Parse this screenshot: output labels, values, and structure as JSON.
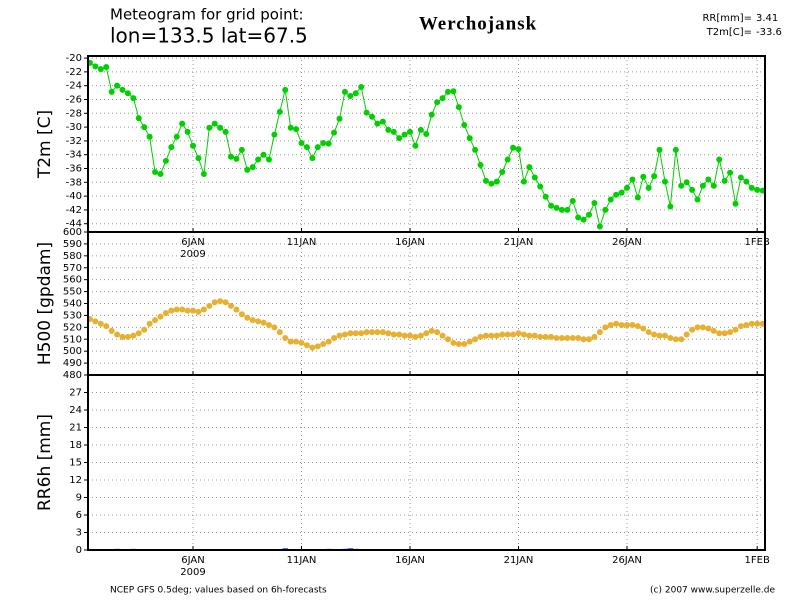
{
  "header": {
    "line1": "Meteogram for grid point:",
    "line2": "lon=133.5 lat=67.5",
    "station": "Werchojansk",
    "stats": [
      {
        "label": "RR[mm]=",
        "value": 3.41
      },
      {
        "label": "T2m[C]=",
        "value": -33.6
      }
    ]
  },
  "footer": {
    "left": "NCEP GFS 0.5deg; values based on 6h-forecasts",
    "right": "(c) 2007 www.superzelle.de"
  },
  "chart_data": [
    {
      "type": "line",
      "ylabel": "T2m [C]",
      "color": "#00d000",
      "grid": true,
      "year_label": "2009",
      "x": [
        1.25,
        1.5,
        1.75,
        2,
        2.25,
        2.5,
        2.75,
        3,
        3.25,
        3.5,
        3.75,
        4,
        4.25,
        4.5,
        4.75,
        5,
        5.25,
        5.5,
        5.75,
        6,
        6.25,
        6.5,
        6.75,
        7,
        7.25,
        7.5,
        7.75,
        8,
        8.25,
        8.5,
        8.75,
        9,
        9.25,
        9.5,
        9.75,
        10,
        10.25,
        10.5,
        10.75,
        11,
        11.25,
        11.5,
        11.75,
        12,
        12.25,
        12.5,
        12.75,
        13,
        13.25,
        13.5,
        13.75,
        14,
        14.25,
        14.5,
        14.75,
        15,
        15.25,
        15.5,
        15.75,
        16,
        16.25,
        16.5,
        16.75,
        17,
        17.25,
        17.5,
        17.75,
        18,
        18.25,
        18.5,
        18.75,
        19,
        19.25,
        19.5,
        19.75,
        20,
        20.25,
        20.5,
        20.75,
        21,
        21.25,
        21.5,
        21.75,
        22,
        22.25,
        22.5,
        22.75,
        23,
        23.25,
        23.5,
        23.75,
        24,
        24.25,
        24.5,
        24.75,
        25,
        25.25,
        25.5,
        25.75,
        26,
        26.25,
        26.5,
        26.75,
        27,
        27.25,
        27.5,
        27.75,
        28,
        28.25,
        28.5,
        28.75,
        29,
        29.25,
        29.5,
        29.75,
        30,
        30.25,
        30.5,
        30.75,
        31,
        31.25,
        31.5,
        31.75,
        32,
        32.25
      ],
      "values": [
        -20.7,
        -21.2,
        -21.6,
        -21.3,
        -24.9,
        -24.0,
        -24.6,
        -25.1,
        -25.8,
        -28.7,
        -30.0,
        -31.4,
        -36.5,
        -36.8,
        -34.9,
        -32.9,
        -31.4,
        -29.5,
        -30.7,
        -32.7,
        -34.5,
        -36.8,
        -30.1,
        -29.5,
        -30.1,
        -30.7,
        -34.3,
        -34.6,
        -33.3,
        -36.2,
        -35.8,
        -34.7,
        -34.0,
        -34.7,
        -31.1,
        -27.8,
        -24.6,
        -30.1,
        -30.3,
        -32.3,
        -32.9,
        -34.5,
        -32.9,
        -32.3,
        -32.4,
        -30.8,
        -28.8,
        -24.9,
        -25.5,
        -25.1,
        -24.2,
        -27.9,
        -28.5,
        -29.5,
        -29.2,
        -30.4,
        -30.7,
        -31.6,
        -31.1,
        -30.7,
        -32.7,
        -30.4,
        -31.0,
        -28.2,
        -26.4,
        -25.8,
        -24.9,
        -24.8,
        -27.1,
        -29.7,
        -31.6,
        -33.3,
        -35.5,
        -37.8,
        -38.2,
        -37.9,
        -36.5,
        -34.7,
        -33.0,
        -33.2,
        -37.9,
        -35.8,
        -37.3,
        -38.6,
        -40.1,
        -41.4,
        -41.7,
        -42.0,
        -42.0,
        -40.7,
        -43.1,
        -43.4,
        -42.7,
        -41.0,
        -44.4,
        -42.0,
        -40.5,
        -39.8,
        -39.5,
        -38.8,
        -37.6,
        -40.2,
        -37.2,
        -38.8,
        -37.1,
        -33.3,
        -37.9,
        -41.5,
        -33.3,
        -38.5,
        -38.0,
        -39.1,
        -40.5,
        -38.5,
        -37.6,
        -38.5,
        -34.7,
        -37.8,
        -36.6,
        -41.1,
        -37.3,
        -37.9,
        -38.8,
        -39.1,
        -39.2
      ],
      "xlim": [
        1.16,
        32.36
      ],
      "ylim": [
        -45.2,
        -19.7
      ],
      "xticks": [
        {
          "value": 6,
          "label": "6JAN"
        },
        {
          "value": 11,
          "label": "11JAN"
        },
        {
          "value": 16,
          "label": "16JAN"
        },
        {
          "value": 21,
          "label": "21JAN"
        },
        {
          "value": 26,
          "label": "26JAN"
        },
        {
          "value": 32,
          "label": "1FEB"
        }
      ],
      "yticks": [
        -20,
        -22,
        -24,
        -26,
        -28,
        -30,
        -32,
        -34,
        -36,
        -38,
        -40,
        -42,
        -44
      ]
    },
    {
      "type": "scatter",
      "ylabel": "H500 [gpdam]",
      "color": "#e8b030",
      "grid": true,
      "x": [
        1.25,
        1.5,
        1.75,
        2,
        2.25,
        2.5,
        2.75,
        3,
        3.25,
        3.5,
        3.75,
        4,
        4.25,
        4.5,
        4.75,
        5,
        5.25,
        5.5,
        5.75,
        6,
        6.25,
        6.5,
        6.75,
        7,
        7.25,
        7.5,
        7.75,
        8,
        8.25,
        8.5,
        8.75,
        9,
        9.25,
        9.5,
        9.75,
        10,
        10.25,
        10.5,
        10.75,
        11,
        11.25,
        11.5,
        11.75,
        12,
        12.25,
        12.5,
        12.75,
        13,
        13.25,
        13.5,
        13.75,
        14,
        14.25,
        14.5,
        14.75,
        15,
        15.25,
        15.5,
        15.75,
        16,
        16.25,
        16.5,
        16.75,
        17,
        17.25,
        17.5,
        17.75,
        18,
        18.25,
        18.5,
        18.75,
        19,
        19.25,
        19.5,
        19.75,
        20,
        20.25,
        20.5,
        20.75,
        21,
        21.25,
        21.5,
        21.75,
        22,
        22.25,
        22.5,
        22.75,
        23,
        23.25,
        23.5,
        23.75,
        24,
        24.25,
        24.5,
        24.75,
        25,
        25.25,
        25.5,
        25.75,
        26,
        26.25,
        26.5,
        26.75,
        27,
        27.25,
        27.5,
        27.75,
        28,
        28.25,
        28.5,
        28.75,
        29,
        29.25,
        29.5,
        29.75,
        30,
        30.25,
        30.5,
        30.75,
        31,
        31.25,
        31.5,
        31.75,
        32,
        32.25
      ],
      "values": [
        527,
        525,
        523,
        521,
        517,
        514,
        512,
        512,
        513,
        515,
        518,
        523,
        526,
        529,
        532,
        534,
        535,
        535,
        534,
        534,
        533,
        535,
        538,
        541,
        542,
        541,
        538,
        535,
        531,
        528,
        526,
        525,
        524,
        522,
        520,
        516,
        511,
        508,
        508,
        507,
        505,
        503,
        504,
        506,
        508,
        511,
        513,
        514,
        515,
        515,
        515,
        516,
        516,
        516,
        516,
        515,
        514,
        514,
        513,
        513,
        512,
        513,
        515,
        517,
        516,
        513,
        510,
        507,
        506,
        506,
        508,
        510,
        512,
        513,
        513,
        513,
        514,
        514,
        514,
        515,
        514,
        513,
        513,
        512,
        512,
        512,
        511,
        511,
        511,
        511,
        511,
        510,
        510,
        512,
        516,
        520,
        522,
        523,
        522,
        522,
        522,
        521,
        519,
        516,
        514,
        513,
        513,
        511,
        510,
        510,
        514,
        518,
        520,
        520,
        519,
        517,
        515,
        515,
        516,
        518,
        521,
        522,
        523,
        523,
        523
      ],
      "xlim": [
        1.16,
        32.36
      ],
      "ylim": [
        480,
        600
      ],
      "xticks": [
        6,
        11,
        16,
        21,
        26,
        32
      ],
      "yticks": [
        480,
        490,
        500,
        510,
        520,
        530,
        540,
        550,
        560,
        570,
        580,
        590,
        600
      ]
    },
    {
      "type": "bar",
      "ylabel": "RR6h [mm]",
      "color": "#2040ff",
      "grid": true,
      "year_label": "2009",
      "x": [
        1.25,
        1.5,
        1.75,
        2,
        2.25,
        2.5,
        2.75,
        3,
        3.25,
        3.5,
        3.75,
        4,
        4.25,
        4.5,
        4.75,
        5,
        5.25,
        5.5,
        5.75,
        6,
        6.25,
        6.5,
        6.75,
        7,
        7.25,
        7.5,
        7.75,
        8,
        8.25,
        8.5,
        8.75,
        9,
        9.25,
        9.5,
        9.75,
        10,
        10.25,
        10.5,
        10.75,
        11,
        11.25,
        11.5,
        11.75,
        12,
        12.25,
        12.5,
        12.75,
        13,
        13.25,
        13.5,
        13.75,
        14,
        14.25,
        14.5,
        14.75,
        15,
        15.25,
        15.5,
        15.75,
        16,
        16.25,
        16.5,
        16.75,
        17,
        17.25,
        17.5,
        17.75,
        18,
        18.25,
        18.5,
        18.75,
        19,
        19.25,
        19.5,
        19.75,
        20,
        20.25,
        20.5,
        20.75,
        21,
        21.25,
        21.5,
        21.75,
        22,
        22.25,
        22.5,
        22.75,
        23,
        23.25,
        23.5,
        23.75,
        24,
        24.25,
        24.5,
        24.75,
        25,
        25.25,
        25.5,
        25.75,
        26,
        26.25,
        26.5,
        26.75,
        27,
        27.25,
        27.5,
        27.75,
        28,
        28.25,
        28.5,
        28.75,
        29,
        29.25,
        29.5,
        29.75,
        30,
        30.25,
        30.5,
        30.75,
        31,
        31.25,
        31.5,
        31.75,
        32,
        32.25
      ],
      "values": [
        0,
        0,
        0,
        0,
        0.1,
        0.2,
        0.1,
        0.1,
        0.2,
        0,
        0,
        0,
        0,
        0,
        0,
        0,
        0,
        0,
        0,
        0,
        0,
        0,
        0,
        0,
        0,
        0,
        0,
        0,
        0,
        0,
        0,
        0,
        0,
        0,
        0,
        0.1,
        0.3,
        0,
        0,
        0,
        0,
        0,
        0,
        0.1,
        0.2,
        0.1,
        0,
        0.2,
        0.3,
        0.2,
        0,
        0,
        0,
        0,
        0,
        0,
        0,
        0,
        0,
        0.1,
        0,
        0,
        0,
        0,
        0,
        0,
        0,
        0,
        0,
        0,
        0,
        0,
        0,
        0,
        0,
        0,
        0,
        0,
        0,
        0,
        0,
        0,
        0,
        0,
        0,
        0,
        0,
        0,
        0,
        0,
        0,
        0,
        0,
        0,
        0,
        0,
        0,
        0,
        0,
        0,
        0,
        0,
        0,
        0,
        0,
        0.1,
        0.1,
        0,
        0,
        0,
        0,
        0,
        0,
        0,
        0,
        0,
        0,
        0,
        0,
        0,
        0,
        0,
        0,
        0,
        0
      ],
      "xlim": [
        1.16,
        32.36
      ],
      "ylim": [
        0,
        30
      ],
      "xticks": [
        {
          "value": 6,
          "label": "6JAN"
        },
        {
          "value": 11,
          "label": "11JAN"
        },
        {
          "value": 16,
          "label": "16JAN"
        },
        {
          "value": 21,
          "label": "21JAN"
        },
        {
          "value": 26,
          "label": "26JAN"
        },
        {
          "value": 32,
          "label": "1FEB"
        }
      ],
      "yticks": [
        0,
        3,
        6,
        9,
        12,
        15,
        18,
        21,
        24,
        27
      ]
    }
  ]
}
